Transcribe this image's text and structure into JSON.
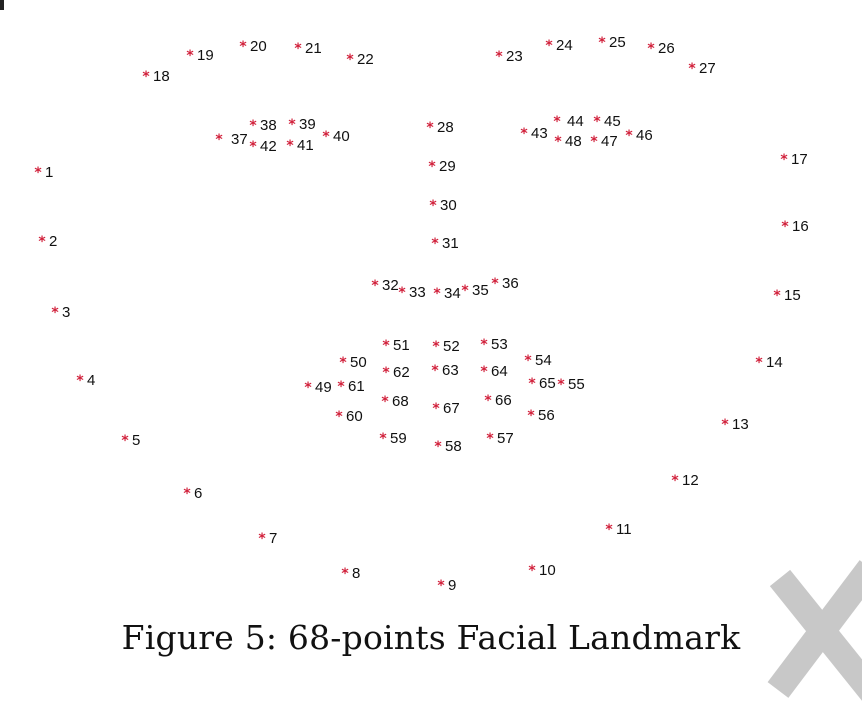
{
  "caption": "Figure 5: 68-points Facial Landmark",
  "marker_glyph": "*",
  "marker_color": "#d11f3a",
  "watermark_icon": "x-mark-icon",
  "watermark_color": "#c8c8c8",
  "landmarks": [
    {
      "id": "1"
    },
    {
      "id": "2"
    },
    {
      "id": "3"
    },
    {
      "id": "4"
    },
    {
      "id": "5"
    },
    {
      "id": "6"
    },
    {
      "id": "7"
    },
    {
      "id": "8"
    },
    {
      "id": "9"
    },
    {
      "id": "10"
    },
    {
      "id": "11"
    },
    {
      "id": "12"
    },
    {
      "id": "13"
    },
    {
      "id": "14"
    },
    {
      "id": "15"
    },
    {
      "id": "16"
    },
    {
      "id": "17"
    },
    {
      "id": "18"
    },
    {
      "id": "19"
    },
    {
      "id": "20"
    },
    {
      "id": "21"
    },
    {
      "id": "22"
    },
    {
      "id": "23"
    },
    {
      "id": "24"
    },
    {
      "id": "25"
    },
    {
      "id": "26"
    },
    {
      "id": "27"
    },
    {
      "id": "28"
    },
    {
      "id": "29"
    },
    {
      "id": "30"
    },
    {
      "id": "31"
    },
    {
      "id": "32"
    },
    {
      "id": "33"
    },
    {
      "id": "34"
    },
    {
      "id": "35"
    },
    {
      "id": "36"
    },
    {
      "id": "37"
    },
    {
      "id": "38"
    },
    {
      "id": "39"
    },
    {
      "id": "40"
    },
    {
      "id": "41"
    },
    {
      "id": "42"
    },
    {
      "id": "43"
    },
    {
      "id": "44"
    },
    {
      "id": "45"
    },
    {
      "id": "46"
    },
    {
      "id": "47"
    },
    {
      "id": "48"
    },
    {
      "id": "49"
    },
    {
      "id": "50"
    },
    {
      "id": "51"
    },
    {
      "id": "52"
    },
    {
      "id": "53"
    },
    {
      "id": "54"
    },
    {
      "id": "55"
    },
    {
      "id": "56"
    },
    {
      "id": "57"
    },
    {
      "id": "58"
    },
    {
      "id": "59"
    },
    {
      "id": "60"
    },
    {
      "id": "61"
    },
    {
      "id": "62"
    },
    {
      "id": "63"
    },
    {
      "id": "64"
    },
    {
      "id": "65"
    },
    {
      "id": "66"
    },
    {
      "id": "67"
    },
    {
      "id": "68"
    }
  ]
}
